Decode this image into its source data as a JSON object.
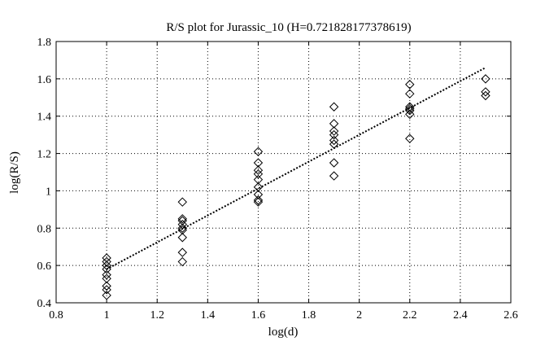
{
  "chart_data": {
    "type": "scatter",
    "title": "R/S plot for Jurassic_10 (H=0.721828177378619)",
    "xlabel": "log(d)",
    "ylabel": "log(R/S)",
    "xlim": [
      0.8,
      2.6
    ],
    "ylim": [
      0.4,
      1.8
    ],
    "xticks": [
      0.8,
      1,
      1.2,
      1.4,
      1.6,
      1.8,
      2,
      2.2,
      2.4,
      2.6
    ],
    "yticks": [
      0.4,
      0.6,
      0.8,
      1,
      1.2,
      1.4,
      1.6,
      1.8
    ],
    "grid": true,
    "marker": "diamond",
    "points": [
      {
        "x": 1.0,
        "y": 0.64
      },
      {
        "x": 1.0,
        "y": 0.62
      },
      {
        "x": 1.0,
        "y": 0.6
      },
      {
        "x": 1.0,
        "y": 0.58
      },
      {
        "x": 1.0,
        "y": 0.55
      },
      {
        "x": 1.0,
        "y": 0.53
      },
      {
        "x": 1.0,
        "y": 0.49
      },
      {
        "x": 1.0,
        "y": 0.47
      },
      {
        "x": 1.0,
        "y": 0.44
      },
      {
        "x": 1.3,
        "y": 0.94
      },
      {
        "x": 1.3,
        "y": 0.85
      },
      {
        "x": 1.3,
        "y": 0.84
      },
      {
        "x": 1.3,
        "y": 0.82
      },
      {
        "x": 1.3,
        "y": 0.8
      },
      {
        "x": 1.3,
        "y": 0.79
      },
      {
        "x": 1.3,
        "y": 0.75
      },
      {
        "x": 1.3,
        "y": 0.67
      },
      {
        "x": 1.3,
        "y": 0.62
      },
      {
        "x": 1.6,
        "y": 1.21
      },
      {
        "x": 1.6,
        "y": 1.15
      },
      {
        "x": 1.6,
        "y": 1.11
      },
      {
        "x": 1.6,
        "y": 1.09
      },
      {
        "x": 1.6,
        "y": 1.06
      },
      {
        "x": 1.6,
        "y": 1.02
      },
      {
        "x": 1.6,
        "y": 0.98
      },
      {
        "x": 1.6,
        "y": 0.95
      },
      {
        "x": 1.6,
        "y": 0.94
      },
      {
        "x": 1.9,
        "y": 1.45
      },
      {
        "x": 1.9,
        "y": 1.36
      },
      {
        "x": 1.9,
        "y": 1.32
      },
      {
        "x": 1.9,
        "y": 1.3
      },
      {
        "x": 1.9,
        "y": 1.27
      },
      {
        "x": 1.9,
        "y": 1.25
      },
      {
        "x": 1.9,
        "y": 1.15
      },
      {
        "x": 1.9,
        "y": 1.08
      },
      {
        "x": 2.2,
        "y": 1.57
      },
      {
        "x": 2.2,
        "y": 1.52
      },
      {
        "x": 2.2,
        "y": 1.45
      },
      {
        "x": 2.2,
        "y": 1.44
      },
      {
        "x": 2.2,
        "y": 1.43
      },
      {
        "x": 2.2,
        "y": 1.41
      },
      {
        "x": 2.2,
        "y": 1.28
      },
      {
        "x": 2.5,
        "y": 1.6
      },
      {
        "x": 2.5,
        "y": 1.53
      },
      {
        "x": 2.5,
        "y": 1.51
      }
    ],
    "fit_line": {
      "x": [
        1.0,
        2.5
      ],
      "y": [
        0.58,
        1.66
      ]
    }
  }
}
